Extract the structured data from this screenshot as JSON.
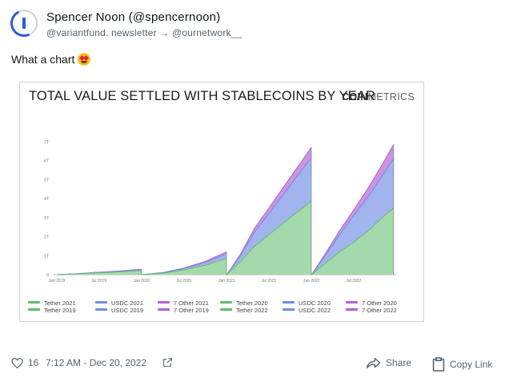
{
  "author": {
    "name": "Spencer Noon (@spencernoon)",
    "bio": "@variantfund. newsletter → @ournetwork__"
  },
  "tweet": {
    "text": "What a chart",
    "emoji": "star-struck-emoji"
  },
  "chart_data": {
    "type": "area",
    "title": "TOTAL VALUE SETTLED WITH STABLECOINS BY YEAR",
    "brand": [
      "COIN",
      "METRICS"
    ],
    "x_ticks": [
      "Jan 2019",
      "Jul 2019",
      "Jan 2020",
      "Jul 2020",
      "Jan 2021",
      "Jul 2021",
      "Jan 2022",
      "Jul 2022"
    ],
    "y_ticks": [
      "0",
      "1T",
      "2T",
      "3T",
      "4T",
      "5T",
      "6T",
      "7T"
    ],
    "ylim": [
      0,
      7.5
    ],
    "stacked": true,
    "years": [
      {
        "year": "2019",
        "x": [
          "2019-01-01",
          "2019-04-01",
          "2019-07-01",
          "2019-10-01",
          "2019-12-31"
        ],
        "tether": [
          0,
          0.04,
          0.1,
          0.15,
          0.22
        ],
        "usdc": [
          0,
          0.01,
          0.02,
          0.03,
          0.04
        ],
        "other": [
          0,
          0.005,
          0.01,
          0.02,
          0.03
        ]
      },
      {
        "year": "2020",
        "x": [
          "2020-01-01",
          "2020-04-01",
          "2020-07-01",
          "2020-10-01",
          "2020-12-31"
        ],
        "tether": [
          0,
          0.08,
          0.25,
          0.5,
          0.85
        ],
        "usdc": [
          0,
          0.02,
          0.07,
          0.14,
          0.25
        ],
        "other": [
          0,
          0.01,
          0.03,
          0.06,
          0.1
        ]
      },
      {
        "year": "2021",
        "x": [
          "2021-01-01",
          "2021-03-01",
          "2021-05-01",
          "2021-07-01",
          "2021-09-01",
          "2021-11-01",
          "2021-12-31"
        ],
        "tether": [
          0,
          0.7,
          1.5,
          2.1,
          2.7,
          3.3,
          3.85
        ],
        "usdc": [
          0,
          0.3,
          0.75,
          1.1,
          1.5,
          1.9,
          2.3
        ],
        "other": [
          0,
          0.08,
          0.2,
          0.3,
          0.38,
          0.45,
          0.55
        ]
      },
      {
        "year": "2022",
        "x": [
          "2022-01-01",
          "2022-03-01",
          "2022-05-01",
          "2022-07-01",
          "2022-09-01",
          "2022-11-01",
          "2022-12-20"
        ],
        "tether": [
          0,
          0.6,
          1.2,
          1.7,
          2.3,
          3.0,
          3.5
        ],
        "usdc": [
          0,
          0.4,
          0.9,
          1.4,
          1.8,
          2.2,
          2.6
        ],
        "other": [
          0,
          0.1,
          0.2,
          0.3,
          0.45,
          0.6,
          0.75
        ]
      }
    ],
    "series_colors": {
      "tether": "#9fd8a6",
      "usdc": "#9cb0ec",
      "other": "#c98ee0"
    },
    "line_colors": {
      "tether": "#63bf6f",
      "usdc": "#6f8fe0",
      "other": "#b45fd6"
    },
    "legend": [
      {
        "label": "Tether 2021",
        "color": "#5cbf6a"
      },
      {
        "label": "USDC 2021",
        "color": "#6b8fe0"
      },
      {
        "label": "7 Other 2021",
        "color": "#b55fd6"
      },
      {
        "label": "Tether 2020",
        "color": "#5cbf6a"
      },
      {
        "label": "USDC 2020",
        "color": "#6b8fe0"
      },
      {
        "label": "7 Other 2020",
        "color": "#b55fd6"
      },
      {
        "label": "Tether 2019",
        "color": "#5cbf6a"
      },
      {
        "label": "USDC 2019",
        "color": "#6b8fe0"
      },
      {
        "label": "7 Other 2019",
        "color": "#b55fd6"
      },
      {
        "label": "Tether 2022",
        "color": "#5cbf6a"
      },
      {
        "label": "USDC 2022",
        "color": "#6b8fe0"
      },
      {
        "label": "7 Other 2022",
        "color": "#b55fd6"
      }
    ],
    "legend_placement": "bottom",
    "grid": false
  },
  "footer": {
    "likes": "16",
    "timestamp": "7:12 AM - Dec 20, 2022",
    "share": "Share",
    "copy_link": "Copy Link"
  }
}
